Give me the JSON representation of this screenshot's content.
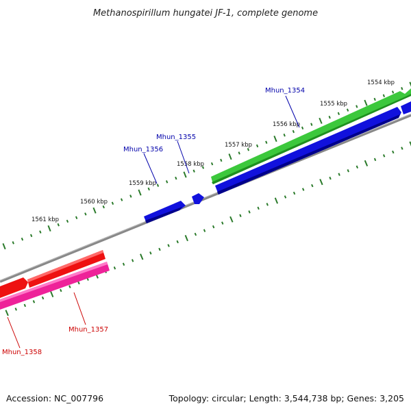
{
  "title": "Methanospirillum hungatei JF-1, complete genome",
  "footer": {
    "accession": "Accession: NC_007796",
    "summary": "Topology: circular; Length: 3,544,738 bp; Genes: 3,205"
  },
  "scale_labels": [
    "1554 kbp",
    "1555 kbp",
    "1556 kbp",
    "1557 kbp",
    "1558 kbp",
    "1559 kbp",
    "1560 kbp",
    "1561 kbp"
  ],
  "genes": [
    {
      "name": "Mhun_1354",
      "color": "#0000aa"
    },
    {
      "name": "Mhun_1355",
      "color": "#0000aa"
    },
    {
      "name": "Mhun_1356",
      "color": "#0000aa"
    },
    {
      "name": "Mhun_1357",
      "color": "#cc0000"
    },
    {
      "name": "Mhun_1358",
      "color": "#cc0000"
    }
  ],
  "colors": {
    "backbone": "#888888",
    "tick": "#2a7a2a",
    "forward_orf": "#3cc83c",
    "forward_cds": "#1111dd",
    "reverse_cds": "#ee1111",
    "reverse_gene": "#ee2299"
  }
}
